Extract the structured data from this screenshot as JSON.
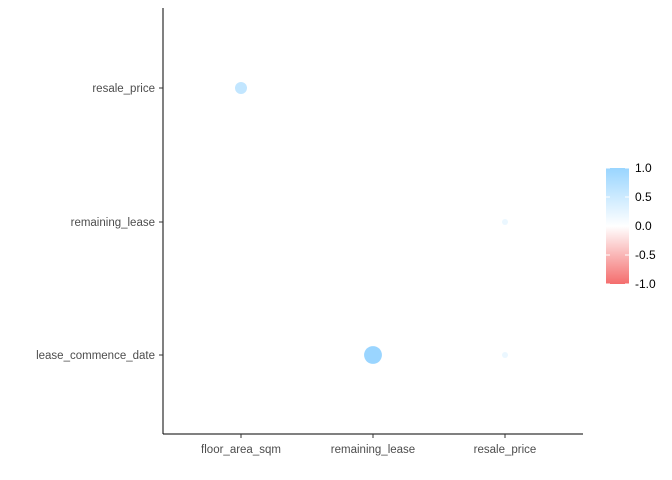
{
  "chart_data": {
    "type": "scatter",
    "subtype": "correlation-matrix-circles",
    "title": "",
    "xlabel": "",
    "ylabel": "",
    "x_categories": [
      "floor_area_sqm",
      "remaining_lease",
      "resale_price"
    ],
    "y_categories": [
      "lease_commence_date",
      "remaining_lease",
      "resale_price"
    ],
    "cells": [
      {
        "x": "floor_area_sqm",
        "y": "resale_price",
        "value": 0.6
      },
      {
        "x": "remaining_lease",
        "y": "lease_commence_date",
        "value": 0.99
      },
      {
        "x": "resale_price",
        "y": "remaining_lease",
        "value": 0.2
      },
      {
        "x": "resale_price",
        "y": "lease_commence_date",
        "value": 0.2
      }
    ],
    "legend": {
      "title": "",
      "placement": "right",
      "range": [
        -1,
        1
      ],
      "ticks": [
        "1.0",
        "0.5",
        "0.0",
        "-0.5",
        "-1.0"
      ],
      "colors": {
        "high": "#99D5FF",
        "mid": "#FFFFFF",
        "low": "#F46D6D"
      }
    },
    "grid": false
  }
}
